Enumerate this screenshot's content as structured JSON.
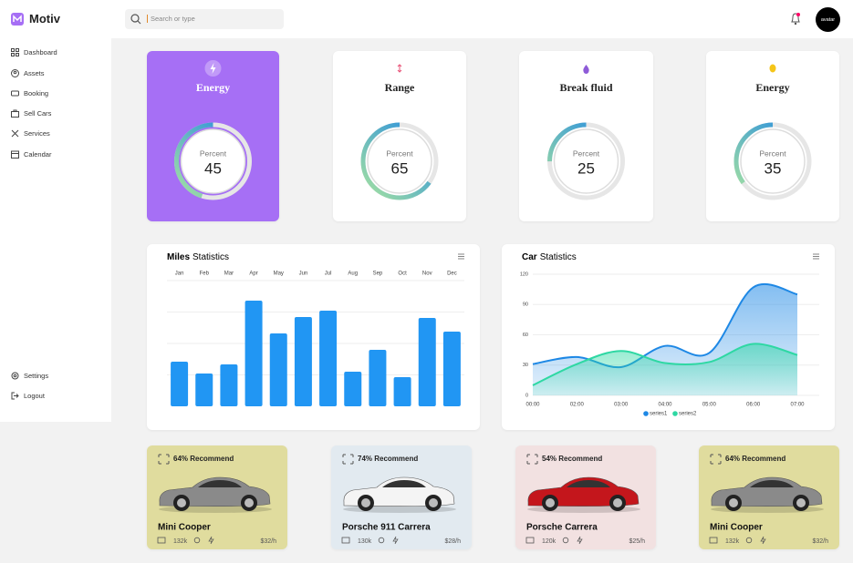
{
  "brand": "Motiv",
  "search": {
    "placeholder": "Search or type"
  },
  "avatar": "avatar",
  "nav": [
    "Dashboard",
    "Assets",
    "Booking",
    "Sell Cars",
    "Services",
    "Calendar"
  ],
  "nav_bottom": [
    "Settings",
    "Logout"
  ],
  "gauges": [
    {
      "title": "Energy",
      "label": "Percent",
      "value": 45
    },
    {
      "title": "Range",
      "label": "Percent",
      "value": 65
    },
    {
      "title": "Break fluid",
      "label": "Percent",
      "value": 25
    },
    {
      "title": "Energy",
      "label": "Percent",
      "value": 35
    }
  ],
  "chart_data": [
    {
      "type": "bar",
      "title_bold": "Miles",
      "title": "Statistics",
      "categories": [
        "Jan",
        "Feb",
        "Mar",
        "Apr",
        "May",
        "Jun",
        "Jul",
        "Aug",
        "Sep",
        "Oct",
        "Nov",
        "Dec"
      ],
      "values": [
        49,
        36,
        46,
        116,
        80,
        98,
        105,
        38,
        62,
        32,
        97,
        82
      ],
      "color": "#2196f3",
      "ylim": [
        0,
        138
      ]
    },
    {
      "type": "area",
      "title_bold": "Car",
      "title": "Statistics",
      "categories": [
        "00:00",
        "02:00",
        "03:00",
        "04:00",
        "05:00",
        "06:00",
        "07:00"
      ],
      "series": [
        {
          "name": "series1",
          "color": "#1e88e5",
          "values": [
            31,
            38,
            28,
            49,
            42,
            107,
            100
          ]
        },
        {
          "name": "series2",
          "color": "#2ed8a3",
          "values": [
            10,
            31,
            44,
            32,
            33,
            51,
            40
          ]
        }
      ],
      "ylim": [
        0,
        120
      ],
      "yticks": [
        0,
        30,
        60,
        90,
        120
      ],
      "grid": true
    }
  ],
  "cars": [
    {
      "recommend": "64% Recommend",
      "name": "Mini Cooper",
      "mileage": "132k",
      "price": "$32/h"
    },
    {
      "recommend": "74% Recommend",
      "name": "Porsche 911 Carrera",
      "mileage": "130k",
      "price": "$28/h"
    },
    {
      "recommend": "54% Recommend",
      "name": "Porsche Carrera",
      "mileage": "120k",
      "price": "$25/h"
    },
    {
      "recommend": "64% Recommend",
      "name": "Mini Cooper",
      "mileage": "132k",
      "price": "$32/h"
    }
  ]
}
